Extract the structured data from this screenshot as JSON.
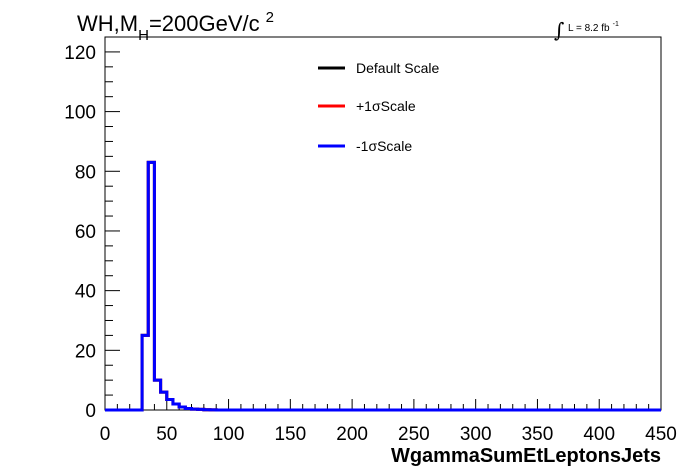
{
  "chart_data": {
    "type": "step",
    "title_parts": {
      "prefix": "WH,M",
      "subscript": "H",
      "suffix": "=200GeV/c",
      "superscript": "2"
    },
    "lumi": {
      "integral_symbol": "∫",
      "text": "L = 8.2 fb",
      "superscript": "-1"
    },
    "xlabel": "WgammaSumEtLeptonsJets",
    "ylabel": "",
    "xlim": [
      0,
      450
    ],
    "ylim": [
      0,
      125
    ],
    "x_ticks": [
      0,
      50,
      100,
      150,
      200,
      250,
      300,
      350,
      400,
      450
    ],
    "x_tick_labels": [
      "0",
      "50",
      "100",
      "150",
      "200",
      "250",
      "300",
      "350",
      "400",
      "450"
    ],
    "y_ticks": [
      0,
      20,
      40,
      60,
      80,
      100,
      120
    ],
    "y_tick_labels": [
      "0",
      "20",
      "40",
      "60",
      "80",
      "100",
      "120"
    ],
    "bin_width": 5,
    "bin_edges_start": 0,
    "legend": {
      "placement": "top-center",
      "entries": [
        {
          "label": "Default Scale",
          "color": "#000000"
        },
        {
          "label": "+1σScale",
          "color": "#ff0000"
        },
        {
          "label": "-1σScale",
          "color": "#0000ff"
        }
      ]
    },
    "series": [
      {
        "name": "Default Scale",
        "color": "#000000",
        "values": [
          0,
          0,
          0,
          0,
          0,
          0,
          25,
          83,
          10,
          6,
          3.5,
          2,
          1,
          0.5,
          0.3,
          0.2,
          0.1,
          0.05,
          0,
          0,
          0,
          0,
          0,
          0,
          0,
          0,
          0,
          0,
          0,
          0,
          0,
          0,
          0,
          0,
          0,
          0,
          0,
          0,
          0,
          0,
          0,
          0,
          0,
          0,
          0,
          0,
          0,
          0,
          0,
          0,
          0,
          0,
          0,
          0,
          0,
          0,
          0,
          0,
          0,
          0,
          0,
          0,
          0,
          0,
          0,
          0,
          0,
          0,
          0,
          0,
          0,
          0,
          0,
          0,
          0,
          0,
          0,
          0,
          0,
          0,
          0,
          0,
          0,
          0,
          0,
          0,
          0,
          0,
          0,
          0
        ]
      },
      {
        "name": "+1σScale",
        "color": "#ff0000",
        "values": [
          0,
          0,
          0,
          0,
          0,
          0,
          25,
          83,
          10,
          6,
          3.5,
          2,
          1,
          0.5,
          0.3,
          0.2,
          0.1,
          0.05,
          0,
          0,
          0,
          0,
          0,
          0,
          0,
          0,
          0,
          0,
          0,
          0,
          0,
          0,
          0,
          0,
          0,
          0,
          0,
          0,
          0,
          0,
          0,
          0,
          0,
          0,
          0,
          0,
          0,
          0,
          0,
          0,
          0,
          0,
          0,
          0,
          0,
          0,
          0,
          0,
          0,
          0,
          0,
          0,
          0,
          0,
          0,
          0,
          0,
          0,
          0,
          0,
          0,
          0,
          0,
          0,
          0,
          0,
          0,
          0,
          0,
          0,
          0,
          0,
          0,
          0,
          0,
          0,
          0,
          0,
          0,
          0
        ]
      },
      {
        "name": "-1σScale",
        "color": "#0000ff",
        "values": [
          0,
          0,
          0,
          0,
          0,
          0,
          25,
          83,
          10,
          6,
          3.5,
          2,
          1,
          0.5,
          0.3,
          0.2,
          0.1,
          0.05,
          0,
          0,
          0,
          0,
          0,
          0,
          0,
          0,
          0,
          0,
          0,
          0,
          0,
          0,
          0,
          0,
          0,
          0,
          0,
          0,
          0,
          0,
          0,
          0,
          0,
          0,
          0,
          0,
          0,
          0,
          0,
          0,
          0,
          0,
          0,
          0,
          0,
          0,
          0,
          0,
          0,
          0,
          0,
          0,
          0,
          0,
          0,
          0,
          0,
          0,
          0,
          0,
          0,
          0,
          0,
          0,
          0,
          0,
          0,
          0,
          0,
          0,
          0,
          0,
          0,
          0,
          0,
          0,
          0,
          0,
          0,
          0
        ]
      }
    ]
  }
}
